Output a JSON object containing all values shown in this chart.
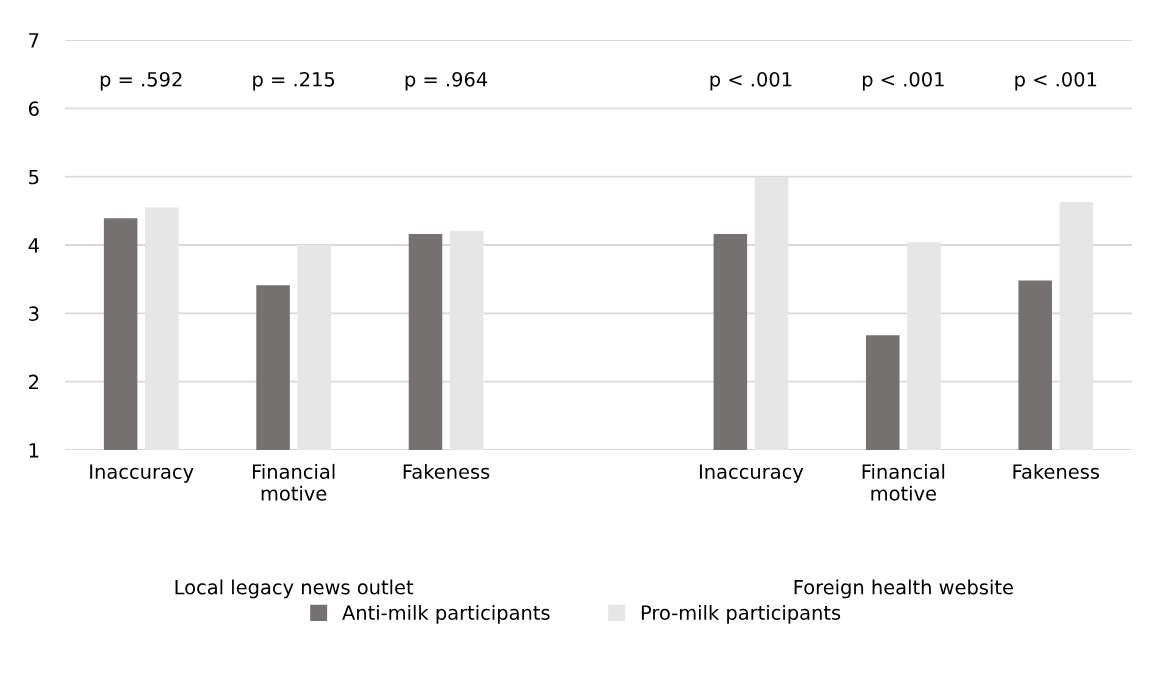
{
  "chart_data": {
    "type": "bar",
    "categories": [
      "Inaccuracy",
      "Financial\nmotive",
      "Fakeness",
      null,
      "Inaccuracy",
      "Financial\nmotive",
      "Fakeness"
    ],
    "series": [
      {
        "name": "Anti-milk participants",
        "color": "#757171",
        "values": [
          4.39,
          3.41,
          4.16,
          null,
          4.16,
          2.68,
          3.48
        ]
      },
      {
        "name": "Pro-milk participants",
        "color": "#e7e6e6",
        "values": [
          4.55,
          4.0,
          4.21,
          null,
          4.99,
          4.04,
          4.63
        ]
      }
    ],
    "ylim": [
      1,
      7
    ],
    "yticks": [
      1,
      2,
      3,
      4,
      5,
      6,
      7
    ],
    "grid": "y",
    "legend": "bottom",
    "annotations": [
      "p = .592",
      "p = .215",
      "p = .964",
      "p < .001",
      "p < .001",
      "p < .001",
      "Local legacy news outlet",
      "Foreign health website"
    ]
  }
}
